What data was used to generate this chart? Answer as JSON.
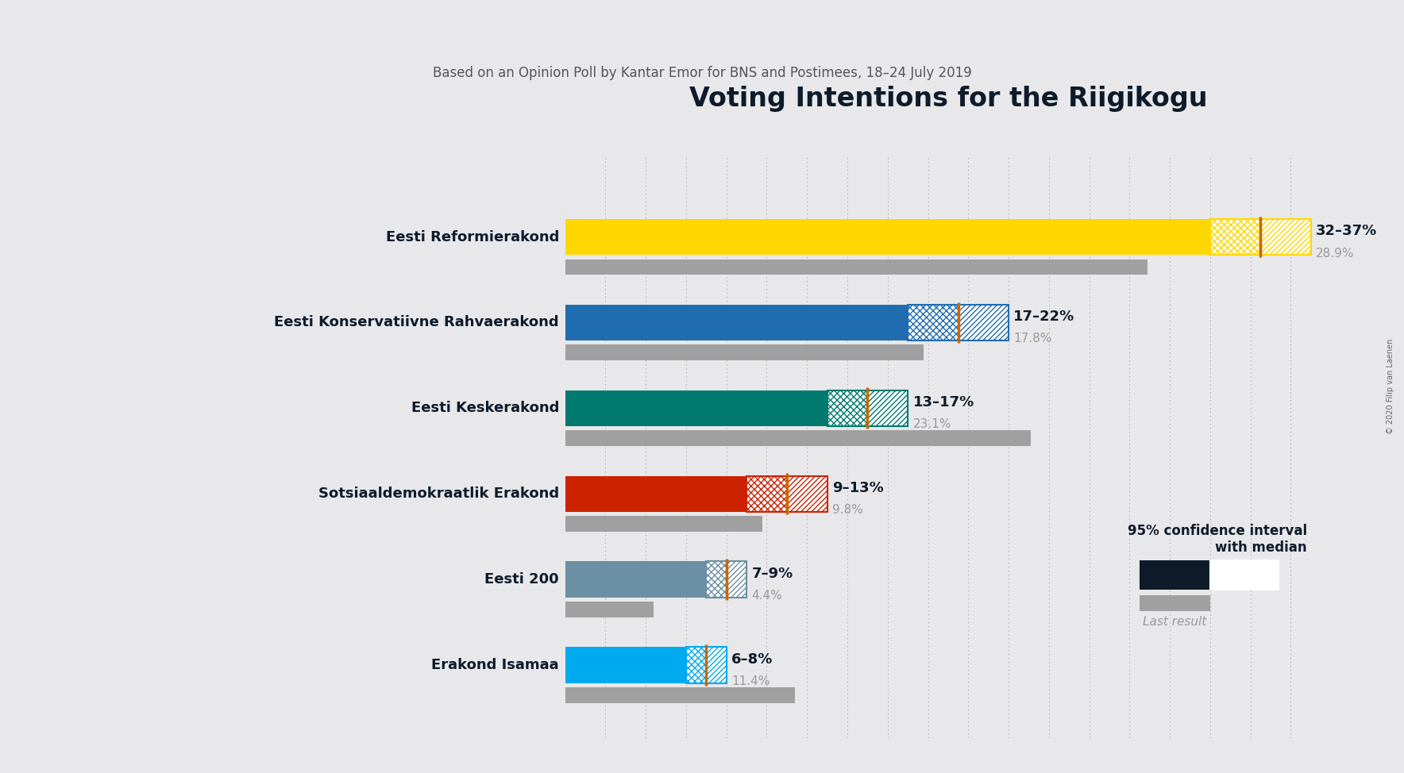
{
  "title": "Voting Intentions for the Riigikogu",
  "subtitle": "Based on an Opinion Poll by Kantar Emor for BNS and Postimees, 18–24 July 2019",
  "copyright": "© 2020 Filip van Laenen",
  "background_color": "#e8e8ea",
  "parties": [
    {
      "name": "Eesti Reformierakond",
      "ci_low": 32,
      "ci_high": 37,
      "median": 34.5,
      "last_result": 28.9,
      "color": "#FFD700",
      "label": "32–37%",
      "last_label": "28.9%"
    },
    {
      "name": "Eesti Konservatiivne Rahvaerakond",
      "ci_low": 17,
      "ci_high": 22,
      "median": 19.5,
      "last_result": 17.8,
      "color": "#1F6CB0",
      "label": "17–22%",
      "last_label": "17.8%"
    },
    {
      "name": "Eesti Keskerakond",
      "ci_low": 13,
      "ci_high": 17,
      "median": 15.0,
      "last_result": 23.1,
      "color": "#007A6E",
      "label": "13–17%",
      "last_label": "23.1%"
    },
    {
      "name": "Sotsiaaldemokraatlik Erakond",
      "ci_low": 9,
      "ci_high": 13,
      "median": 11.0,
      "last_result": 9.8,
      "color": "#CC2200",
      "label": "9–13%",
      "last_label": "9.8%"
    },
    {
      "name": "Eesti 200",
      "ci_low": 7,
      "ci_high": 9,
      "median": 8.0,
      "last_result": 4.4,
      "color": "#6B8FA3",
      "label": "7–9%",
      "last_label": "4.4%"
    },
    {
      "name": "Erakond Isamaa",
      "ci_low": 6,
      "ci_high": 8,
      "median": 7.0,
      "last_result": 11.4,
      "color": "#00AAEE",
      "label": "6–8%",
      "last_label": "11.4%"
    }
  ],
  "median_line_color": "#CC6600",
  "last_result_color": "#999999",
  "xlim_max": 38,
  "legend_ci_color": "#0D1B2A",
  "legend_last_color": "#999999",
  "grid_color": "#555555",
  "text_color": "#0D1B2A",
  "subtitle_color": "#555555"
}
